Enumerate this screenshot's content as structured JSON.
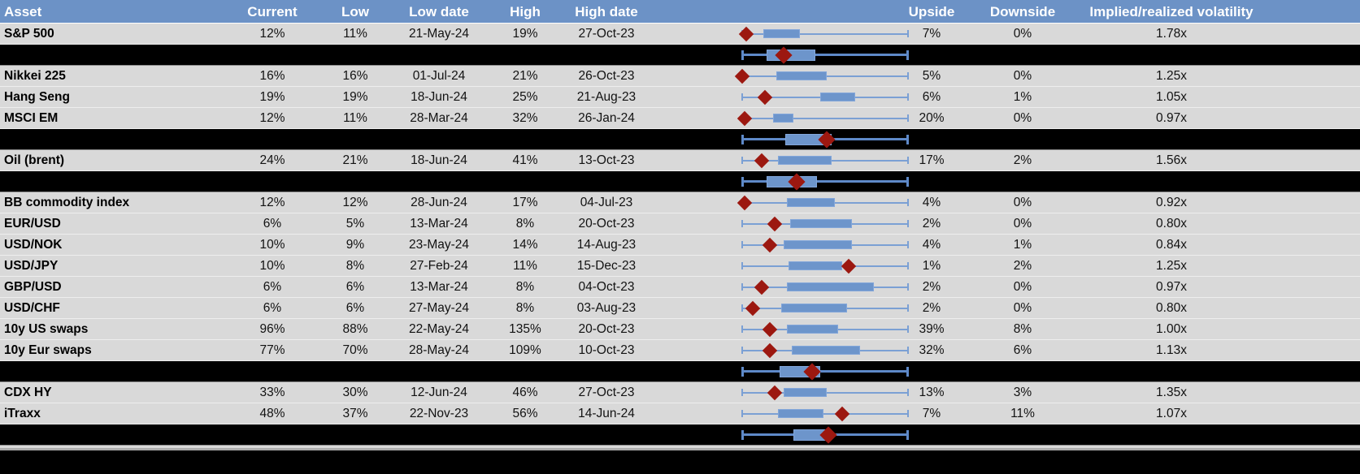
{
  "chart_data": {
    "type": "table",
    "description": "Asset volatility table with per-row normalized box plots (whisker = low-to-high 1y range, box = interquartile range, red diamond = current level, fractions 0-1 of range)",
    "columns": [
      {
        "key": "asset",
        "label": "Asset"
      },
      {
        "key": "current",
        "label": "Current"
      },
      {
        "key": "low",
        "label": "Low"
      },
      {
        "key": "low_date",
        "label": "Low date"
      },
      {
        "key": "high",
        "label": "High"
      },
      {
        "key": "high_date",
        "label": "High date"
      },
      {
        "key": "plot",
        "label": ""
      },
      {
        "key": "upside",
        "label": "Upside"
      },
      {
        "key": "downside",
        "label": "Downside"
      },
      {
        "key": "vol",
        "label": "Implied/realized volatility"
      }
    ],
    "rows": [
      {
        "type": "data",
        "asset": "S&P 500",
        "current": "12%",
        "low": "11%",
        "low_date": "21-May-24",
        "high": "19%",
        "high_date": "27-Oct-23",
        "upside": "7%",
        "downside": "0%",
        "vol": "1.78x",
        "plot": {
          "whisker": [
            0,
            1
          ],
          "box": [
            0.13,
            0.35
          ],
          "diamond": 0.03
        }
      },
      {
        "type": "separator",
        "plot": {
          "whisker": [
            0,
            1
          ],
          "box": [
            0.15,
            0.44
          ],
          "diamond": 0.25
        }
      },
      {
        "type": "data",
        "asset": "Nikkei 225",
        "current": "16%",
        "low": "16%",
        "low_date": "01-Jul-24",
        "high": "21%",
        "high_date": "26-Oct-23",
        "upside": "5%",
        "downside": "0%",
        "vol": "1.25x",
        "plot": {
          "whisker": [
            0,
            1
          ],
          "box": [
            0.21,
            0.51
          ],
          "diamond": 0.005
        }
      },
      {
        "type": "data",
        "asset": "Hang Seng",
        "current": "19%",
        "low": "19%",
        "low_date": "18-Jun-24",
        "high": "25%",
        "high_date": "21-Aug-23",
        "upside": "6%",
        "downside": "1%",
        "vol": "1.05x",
        "plot": {
          "whisker": [
            0,
            1
          ],
          "box": [
            0.47,
            0.68
          ],
          "diamond": 0.14
        }
      },
      {
        "type": "data",
        "asset": "MSCI EM",
        "current": "12%",
        "low": "11%",
        "low_date": "28-Mar-24",
        "high": "32%",
        "high_date": "26-Jan-24",
        "upside": "20%",
        "downside": "0%",
        "vol": "0.97x",
        "plot": {
          "whisker": [
            0,
            1
          ],
          "box": [
            0.19,
            0.31
          ],
          "diamond": 0.02
        }
      },
      {
        "type": "separator",
        "plot": {
          "whisker": [
            0,
            1
          ],
          "box": [
            0.26,
            0.54
          ],
          "diamond": 0.51
        }
      },
      {
        "type": "data",
        "asset": "Oil (brent)",
        "current": "24%",
        "low": "21%",
        "low_date": "18-Jun-24",
        "high": "41%",
        "high_date": "13-Oct-23",
        "upside": "17%",
        "downside": "2%",
        "vol": "1.56x",
        "plot": {
          "whisker": [
            0,
            1
          ],
          "box": [
            0.22,
            0.54
          ],
          "diamond": 0.12
        }
      },
      {
        "type": "separator",
        "plot": {
          "whisker": [
            0,
            1
          ],
          "box": [
            0.15,
            0.45
          ],
          "diamond": 0.33
        }
      },
      {
        "type": "data",
        "asset": "BB commodity index",
        "current": "12%",
        "low": "12%",
        "low_date": "28-Jun-24",
        "high": "17%",
        "high_date": "04-Jul-23",
        "upside": "4%",
        "downside": "0%",
        "vol": "0.92x",
        "plot": {
          "whisker": [
            0,
            1
          ],
          "box": [
            0.27,
            0.56
          ],
          "diamond": 0.02
        }
      },
      {
        "type": "data",
        "asset": "EUR/USD",
        "current": "6%",
        "low": "5%",
        "low_date": "13-Mar-24",
        "high": "8%",
        "high_date": "20-Oct-23",
        "upside": "2%",
        "downside": "0%",
        "vol": "0.80x",
        "plot": {
          "whisker": [
            0,
            1
          ],
          "box": [
            0.29,
            0.66
          ],
          "diamond": 0.2
        }
      },
      {
        "type": "data",
        "asset": "USD/NOK",
        "current": "10%",
        "low": "9%",
        "low_date": "23-May-24",
        "high": "14%",
        "high_date": "14-Aug-23",
        "upside": "4%",
        "downside": "1%",
        "vol": "0.84x",
        "plot": {
          "whisker": [
            0,
            1
          ],
          "box": [
            0.25,
            0.66
          ],
          "diamond": 0.17
        }
      },
      {
        "type": "data",
        "asset": "USD/JPY",
        "current": "10%",
        "low": "8%",
        "low_date": "27-Feb-24",
        "high": "11%",
        "high_date": "15-Dec-23",
        "upside": "1%",
        "downside": "2%",
        "vol": "1.25x",
        "plot": {
          "whisker": [
            0,
            1
          ],
          "box": [
            0.28,
            0.6
          ],
          "diamond": 0.64
        }
      },
      {
        "type": "data",
        "asset": "GBP/USD",
        "current": "6%",
        "low": "6%",
        "low_date": "13-Mar-24",
        "high": "8%",
        "high_date": "04-Oct-23",
        "upside": "2%",
        "downside": "0%",
        "vol": "0.97x",
        "plot": {
          "whisker": [
            0,
            1
          ],
          "box": [
            0.27,
            0.79
          ],
          "diamond": 0.12
        }
      },
      {
        "type": "data",
        "asset": "USD/CHF",
        "current": "6%",
        "low": "6%",
        "low_date": "27-May-24",
        "high": "8%",
        "high_date": "03-Aug-23",
        "upside": "2%",
        "downside": "0%",
        "vol": "0.80x",
        "plot": {
          "whisker": [
            0,
            1
          ],
          "box": [
            0.24,
            0.63
          ],
          "diamond": 0.07
        }
      },
      {
        "type": "data",
        "asset": "10y US swaps",
        "current": "96%",
        "low": "88%",
        "low_date": "22-May-24",
        "high": "135%",
        "high_date": "20-Oct-23",
        "upside": "39%",
        "downside": "8%",
        "vol": "1.00x",
        "plot": {
          "whisker": [
            0,
            1
          ],
          "box": [
            0.27,
            0.58
          ],
          "diamond": 0.17
        }
      },
      {
        "type": "data",
        "asset": "10y Eur swaps",
        "current": "77%",
        "low": "70%",
        "low_date": "28-May-24",
        "high": "109%",
        "high_date": "10-Oct-23",
        "upside": "32%",
        "downside": "6%",
        "vol": "1.13x",
        "plot": {
          "whisker": [
            0,
            1
          ],
          "box": [
            0.3,
            0.71
          ],
          "diamond": 0.17
        }
      },
      {
        "type": "separator",
        "plot": {
          "whisker": [
            0,
            1
          ],
          "box": [
            0.23,
            0.47
          ],
          "diamond": 0.42
        }
      },
      {
        "type": "data",
        "asset": "CDX HY",
        "current": "33%",
        "low": "30%",
        "low_date": "12-Jun-24",
        "high": "46%",
        "high_date": "27-Oct-23",
        "upside": "13%",
        "downside": "3%",
        "vol": "1.35x",
        "plot": {
          "whisker": [
            0,
            1
          ],
          "box": [
            0.25,
            0.51
          ],
          "diamond": 0.2
        }
      },
      {
        "type": "data",
        "asset": "iTraxx",
        "current": "48%",
        "low": "37%",
        "low_date": "22-Nov-23",
        "high": "56%",
        "high_date": "14-Jun-24",
        "upside": "7%",
        "downside": "11%",
        "vol": "1.07x",
        "plot": {
          "whisker": [
            0,
            1
          ],
          "box": [
            0.22,
            0.49
          ],
          "diamond": 0.6
        }
      },
      {
        "type": "separator",
        "plot": {
          "whisker": [
            0,
            1
          ],
          "box": [
            0.31,
            0.51
          ],
          "diamond": 0.52
        }
      }
    ],
    "colors": {
      "header_bg": "#6C92C6",
      "header_text": "#FFFFFF",
      "row_bg": "#D9D9D9",
      "separator_bg": "#000000",
      "box_fill": "#6D95CB",
      "whisker": "#7BA0D4",
      "whisker_on_black": "#5E89C8",
      "diamond": "#9C1810",
      "bottom_divider": "#ACACAC"
    }
  }
}
